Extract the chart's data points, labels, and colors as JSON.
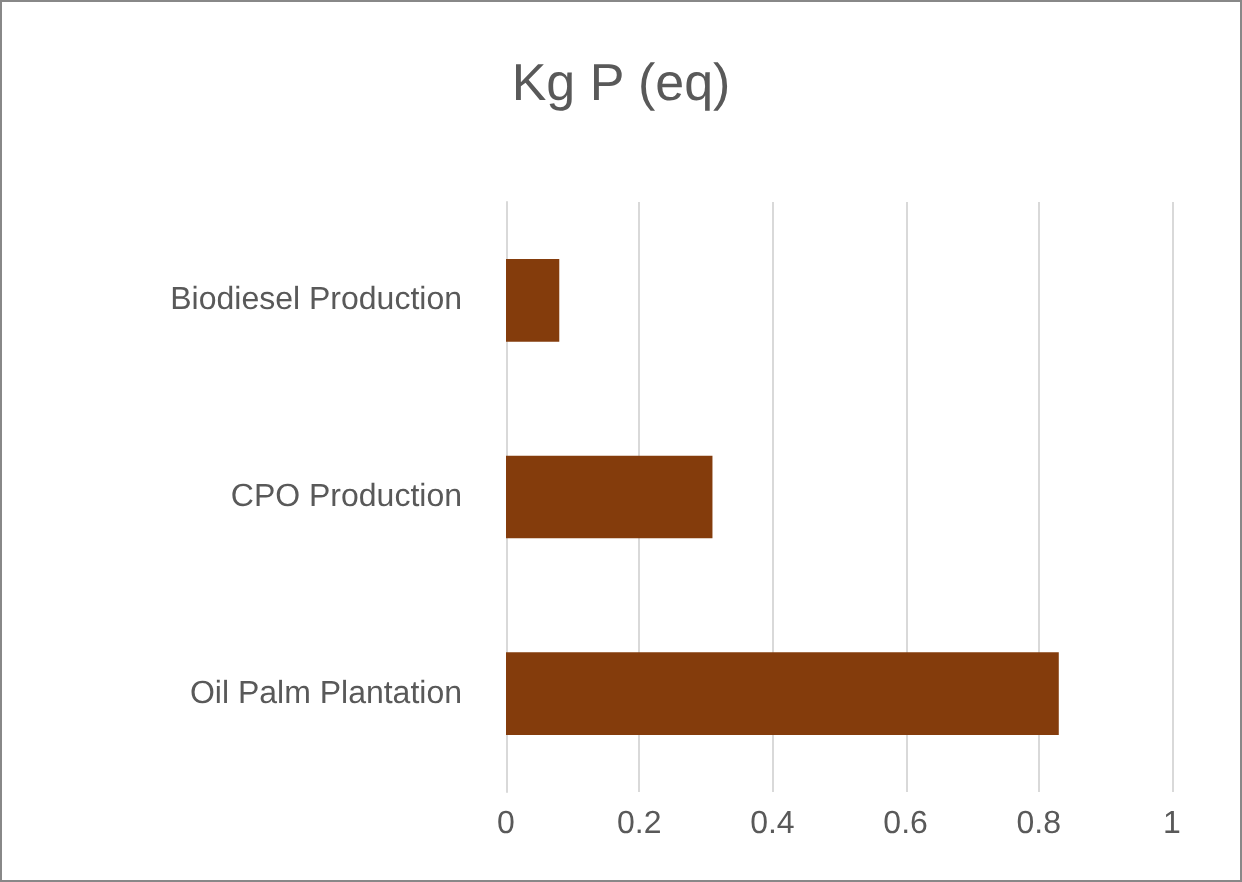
{
  "chart_data": {
    "type": "bar",
    "orientation": "horizontal",
    "title": "Kg P (eq)",
    "categories": [
      "Biodiesel Production",
      "CPO Production",
      "Oil Palm Plantation"
    ],
    "values": [
      0.08,
      0.31,
      0.83
    ],
    "color": "#843c0c",
    "xlim": [
      0,
      1
    ],
    "xticks": [
      0,
      0.2,
      0.4,
      0.6,
      0.8,
      1
    ],
    "grid": "x"
  }
}
